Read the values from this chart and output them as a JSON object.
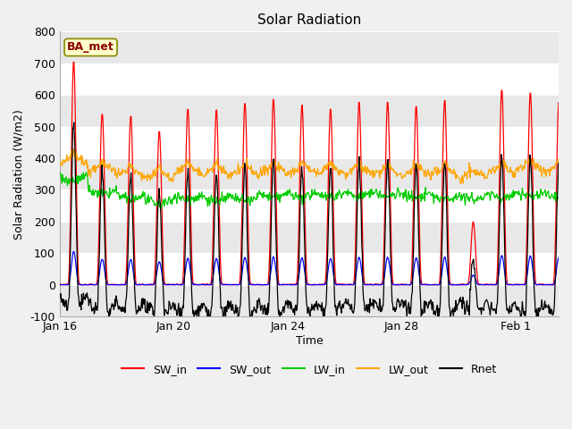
{
  "title": "Solar Radiation",
  "xlabel": "Time",
  "ylabel": "Solar Radiation (W/m2)",
  "ylim": [
    -100,
    800
  ],
  "yticks": [
    -100,
    0,
    100,
    200,
    300,
    400,
    500,
    600,
    700,
    800
  ],
  "colors": {
    "SW_in": "#ff0000",
    "SW_out": "#0000ff",
    "LW_in": "#00cc00",
    "LW_out": "#ffa500",
    "Rnet": "#000000"
  },
  "legend_label": "BA_met",
  "xtick_labels": [
    "Jan 16",
    "Jan 20",
    "Jan 24",
    "Jan 28",
    "Feb 1"
  ],
  "xtick_positions": [
    1,
    5,
    9,
    13,
    17
  ],
  "fig_bg": "#f0f0f0",
  "plot_bg": "#ffffff",
  "band_color": "#e8e8e8",
  "grid_color": "#ffffff",
  "sw_in_peaks": [
    710,
    545,
    535,
    490,
    560,
    555,
    580,
    590,
    570,
    560,
    580,
    580,
    570,
    585,
    200,
    620,
    610,
    580
  ],
  "n_days": 18,
  "pts_per_day": 48,
  "lw_in_means": [
    345,
    300,
    285,
    270,
    285,
    280,
    280,
    290,
    290,
    295,
    295,
    295,
    290,
    285,
    285,
    290,
    295,
    290
  ],
  "lw_out_means": [
    380,
    355,
    340,
    335,
    350,
    345,
    345,
    350,
    350,
    350,
    345,
    345,
    345,
    345,
    335,
    350,
    360,
    355
  ]
}
